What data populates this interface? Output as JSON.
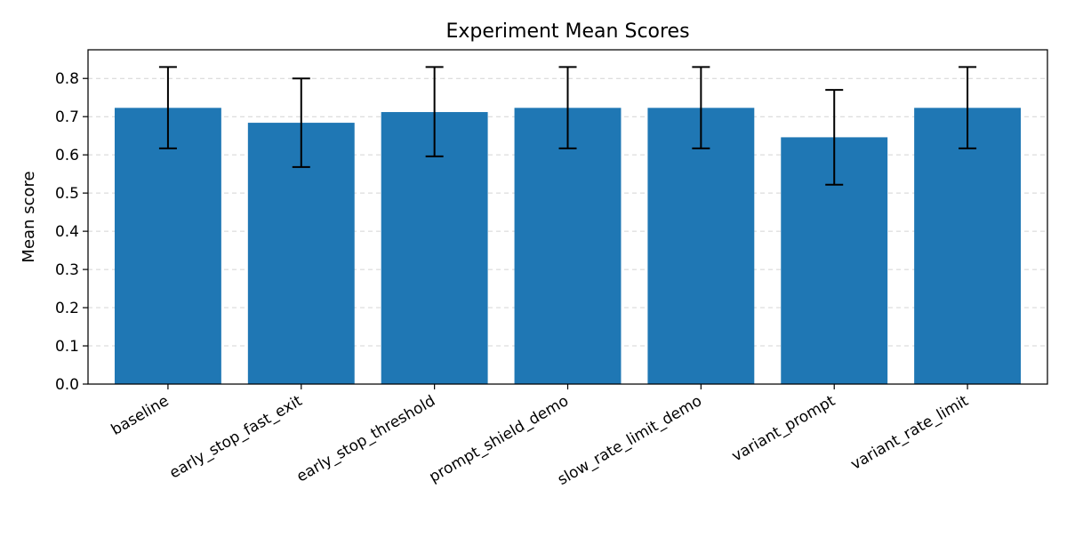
{
  "chart_data": {
    "type": "bar",
    "title": "Experiment Mean Scores",
    "xlabel": "",
    "ylabel": "Mean score",
    "categories": [
      "baseline",
      "early_stop_fast_exit",
      "early_stop_threshold",
      "prompt_shield_demo",
      "slow_rate_limit_demo",
      "variant_prompt",
      "variant_rate_limit"
    ],
    "values": [
      0.723,
      0.684,
      0.712,
      0.723,
      0.723,
      0.646,
      0.723
    ],
    "error_low": [
      0.617,
      0.568,
      0.596,
      0.617,
      0.617,
      0.522,
      0.617
    ],
    "error_high": [
      0.83,
      0.8,
      0.83,
      0.83,
      0.83,
      0.77,
      0.83
    ],
    "ylim": [
      0,
      0.875
    ],
    "yticks": [
      0.0,
      0.1,
      0.2,
      0.3,
      0.4,
      0.5,
      0.6,
      0.7,
      0.8
    ],
    "ytick_labels": [
      "0.0",
      "0.1",
      "0.2",
      "0.3",
      "0.4",
      "0.5",
      "0.6",
      "0.7",
      "0.8"
    ],
    "grid": "y-dashed",
    "legend": "none",
    "bar_color": "#1f77b4",
    "error_color": "#000000"
  }
}
